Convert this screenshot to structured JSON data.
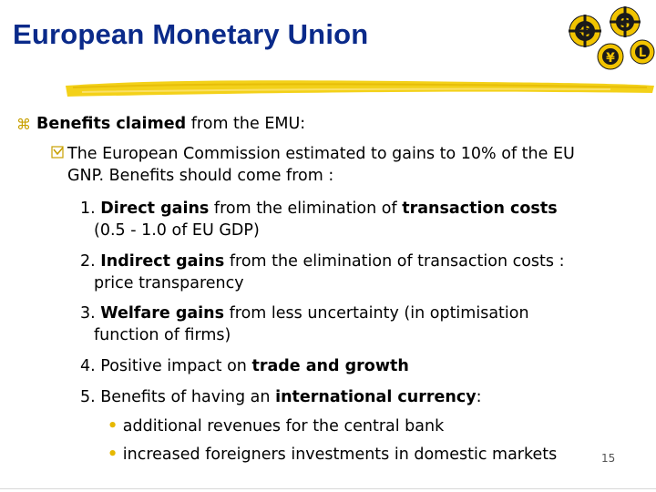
{
  "title": "European Monetary Union",
  "level1": {
    "bold": "Benefits claimed",
    "rest": " from the EMU:"
  },
  "level2": {
    "line1": "The European Commission estimated to gains to 10% of the EU",
    "line2": "GNP. Benefits should come from :"
  },
  "items": [
    {
      "num": "1. ",
      "bold": "Direct gains",
      "mid": " from the elimination of  ",
      "bold2": "transaction costs",
      "cont": "(0.5 - 1.0 of EU GDP)"
    },
    {
      "num": "2. ",
      "bold": "Indirect gains",
      "mid": " from the elimination of  transaction costs :",
      "cont": "price transparency"
    },
    {
      "num": "3. ",
      "bold": "Welfare gains",
      "mid": " from less uncertainty (in optimisation",
      "cont": "function of firms)"
    },
    {
      "num": "4. ",
      "pre": "Positive impact on ",
      "bold": "trade and growth"
    },
    {
      "num": "5. ",
      "pre": "Benefits of having an ",
      "bold": "international currency",
      "post": ":"
    }
  ],
  "subbullets": [
    "additional revenues for the central bank",
    "increased foreigners investments in domestic markets"
  ],
  "page_number": "15",
  "logo": {
    "icon": "currency-gears-icon",
    "symbols": [
      "€",
      "$",
      "¥",
      "L"
    ]
  },
  "colors": {
    "title": "#0a2a8a",
    "accent_yellow": "#f2cc00",
    "bullet": "#e6b800"
  }
}
